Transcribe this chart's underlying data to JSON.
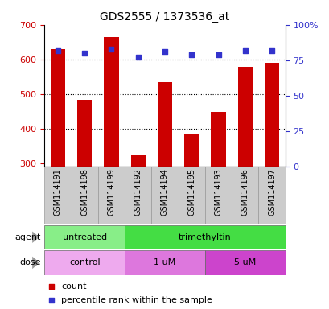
{
  "title": "GDS2555 / 1373536_at",
  "samples": [
    "GSM114191",
    "GSM114198",
    "GSM114199",
    "GSM114192",
    "GSM114194",
    "GSM114195",
    "GSM114193",
    "GSM114196",
    "GSM114197"
  ],
  "counts": [
    630,
    483,
    665,
    323,
    535,
    385,
    448,
    578,
    591
  ],
  "percentiles": [
    82,
    80,
    83,
    77,
    81,
    79,
    79,
    82,
    82
  ],
  "ymin": 290,
  "ymax": 700,
  "yticks": [
    300,
    400,
    500,
    600,
    700
  ],
  "y2ticks": [
    0,
    25,
    50,
    75,
    100
  ],
  "y2labels": [
    "0",
    "25",
    "50",
    "75",
    "100%"
  ],
  "bar_color": "#cc0000",
  "dot_color": "#3333cc",
  "agent_groups": [
    {
      "label": "untreated",
      "start": 0,
      "end": 3,
      "color": "#88ee88"
    },
    {
      "label": "trimethyltin",
      "start": 3,
      "end": 9,
      "color": "#44dd44"
    }
  ],
  "dose_groups": [
    {
      "label": "control",
      "start": 0,
      "end": 3,
      "color": "#eeaaee"
    },
    {
      "label": "1 uM",
      "start": 3,
      "end": 6,
      "color": "#dd77dd"
    },
    {
      "label": "5 uM",
      "start": 6,
      "end": 9,
      "color": "#cc44cc"
    }
  ],
  "grid_color": "#000000",
  "tick_label_color_left": "#cc0000",
  "tick_label_color_right": "#3333cc",
  "bar_width": 0.55,
  "cell_bg": "#cccccc",
  "cell_border": "#aaaaaa"
}
